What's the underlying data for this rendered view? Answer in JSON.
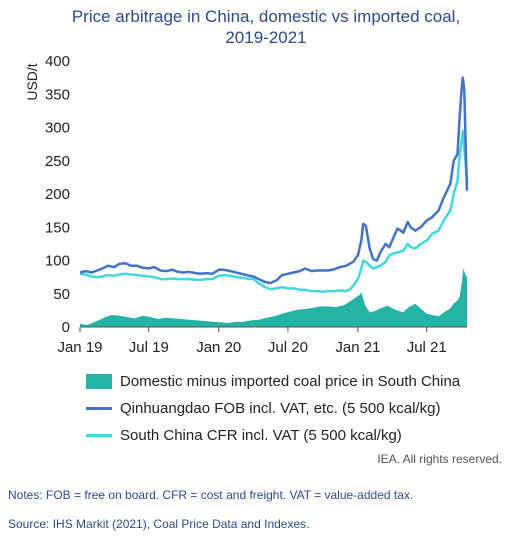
{
  "title_line1": "Price arbitrage in China, domestic vs imported coal,",
  "title_line2": "2019-2021",
  "rights": "IEA. All rights reserved.",
  "notes": "Notes: FOB = free on board. CFR = cost and freight. VAT = value-added tax.",
  "source": "Source: IHS Markit (2021), Coal Price Data and Indexes.",
  "colors": {
    "area": "#25b3a5",
    "qinhuangdao": "#4472c4",
    "south_china": "#3fd9db"
  },
  "chart_data": {
    "type": "line",
    "ylabel": "USD/t",
    "xlabel": "",
    "ylim": [
      0,
      400
    ],
    "yticks": [
      0,
      50,
      100,
      150,
      200,
      250,
      300,
      350,
      400
    ],
    "xlim": [
      "2019-01-01",
      "2021-10-15"
    ],
    "xticks": [
      {
        "date": "2019-01-01",
        "label": "Jan 19"
      },
      {
        "date": "2019-07-01",
        "label": "Jul 19"
      },
      {
        "date": "2020-01-01",
        "label": "Jan 20"
      },
      {
        "date": "2020-07-01",
        "label": "Jul 20"
      },
      {
        "date": "2021-01-01",
        "label": "Jan 21"
      },
      {
        "date": "2021-07-01",
        "label": "Jul 21"
      }
    ],
    "grid": false,
    "legend": "bottom",
    "series": [
      {
        "name": "Domestic minus imported coal price in South China",
        "kind": "area",
        "x": [
          "2019-01-01",
          "2019-01-20",
          "2019-02-10",
          "2019-03-05",
          "2019-03-25",
          "2019-04-15",
          "2019-05-05",
          "2019-05-25",
          "2019-06-15",
          "2019-07-05",
          "2019-07-25",
          "2019-08-15",
          "2019-09-05",
          "2019-09-25",
          "2019-10-15",
          "2019-11-05",
          "2019-11-25",
          "2019-12-15",
          "2020-01-05",
          "2020-01-25",
          "2020-02-15",
          "2020-03-05",
          "2020-03-25",
          "2020-04-15",
          "2020-05-05",
          "2020-05-25",
          "2020-06-15",
          "2020-07-05",
          "2020-07-25",
          "2020-08-15",
          "2020-09-05",
          "2020-09-25",
          "2020-10-15",
          "2020-11-05",
          "2020-11-25",
          "2020-12-05",
          "2020-12-15",
          "2020-12-25",
          "2021-01-05",
          "2021-01-10",
          "2021-01-20",
          "2021-02-01",
          "2021-02-15",
          "2021-03-01",
          "2021-03-20",
          "2021-04-10",
          "2021-04-30",
          "2021-05-15",
          "2021-06-01",
          "2021-06-15",
          "2021-07-01",
          "2021-07-15",
          "2021-08-01",
          "2021-08-15",
          "2021-09-01",
          "2021-09-10",
          "2021-09-20",
          "2021-09-25",
          "2021-10-01",
          "2021-10-05",
          "2021-10-10",
          "2021-10-15"
        ],
        "values": [
          5,
          3,
          8,
          14,
          18,
          17,
          15,
          13,
          17,
          15,
          12,
          14,
          13,
          12,
          11,
          10,
          9,
          8,
          7,
          6,
          8,
          8,
          10,
          11,
          14,
          16,
          20,
          23,
          26,
          27,
          29,
          31,
          31,
          30,
          33,
          36,
          40,
          44,
          48,
          52,
          33,
          22,
          24,
          28,
          32,
          26,
          22,
          30,
          35,
          28,
          20,
          18,
          16,
          22,
          28,
          35,
          40,
          45,
          65,
          88,
          80,
          75
        ]
      },
      {
        "name": "Qinhuangdao FOB incl. VAT, etc. (5 500 kcal/kg)",
        "kind": "line",
        "x": [
          "2019-01-01",
          "2019-01-15",
          "2019-02-01",
          "2019-02-15",
          "2019-03-01",
          "2019-03-15",
          "2019-04-01",
          "2019-04-15",
          "2019-05-01",
          "2019-05-15",
          "2019-06-01",
          "2019-06-15",
          "2019-07-01",
          "2019-07-15",
          "2019-08-01",
          "2019-08-15",
          "2019-09-01",
          "2019-09-15",
          "2019-10-01",
          "2019-10-15",
          "2019-11-01",
          "2019-11-15",
          "2019-12-01",
          "2019-12-15",
          "2020-01-01",
          "2020-01-15",
          "2020-02-01",
          "2020-02-15",
          "2020-03-01",
          "2020-03-15",
          "2020-04-01",
          "2020-04-15",
          "2020-05-01",
          "2020-05-15",
          "2020-06-01",
          "2020-06-15",
          "2020-07-01",
          "2020-07-15",
          "2020-08-01",
          "2020-08-15",
          "2020-09-01",
          "2020-09-15",
          "2020-10-01",
          "2020-10-15",
          "2020-11-01",
          "2020-11-15",
          "2020-12-01",
          "2020-12-10",
          "2020-12-20",
          "2021-01-01",
          "2021-01-10",
          "2021-01-15",
          "2021-01-22",
          "2021-02-01",
          "2021-02-10",
          "2021-02-20",
          "2021-03-01",
          "2021-03-15",
          "2021-03-25",
          "2021-04-01",
          "2021-04-15",
          "2021-05-01",
          "2021-05-12",
          "2021-05-20",
          "2021-06-01",
          "2021-06-15",
          "2021-07-01",
          "2021-07-15",
          "2021-08-01",
          "2021-08-15",
          "2021-09-01",
          "2021-09-10",
          "2021-09-20",
          "2021-09-25",
          "2021-10-01",
          "2021-10-04",
          "2021-10-08",
          "2021-10-12",
          "2021-10-15"
        ],
        "values": [
          82,
          84,
          82,
          85,
          88,
          92,
          90,
          95,
          96,
          92,
          92,
          89,
          88,
          90,
          85,
          84,
          86,
          83,
          82,
          83,
          81,
          80,
          81,
          80,
          86,
          86,
          84,
          82,
          80,
          78,
          76,
          72,
          68,
          66,
          70,
          78,
          80,
          82,
          84,
          88,
          84,
          85,
          85,
          85,
          87,
          90,
          92,
          95,
          98,
          108,
          130,
          155,
          152,
          118,
          102,
          100,
          112,
          125,
          120,
          130,
          148,
          142,
          158,
          150,
          145,
          150,
          160,
          165,
          175,
          195,
          215,
          250,
          260,
          310,
          360,
          375,
          355,
          260,
          205
        ]
      },
      {
        "name": "South China CFR incl. VAT (5 500 kcal/kg)",
        "kind": "line",
        "x": [
          "2019-01-01",
          "2019-01-15",
          "2019-02-01",
          "2019-02-15",
          "2019-03-01",
          "2019-03-15",
          "2019-04-01",
          "2019-04-15",
          "2019-05-01",
          "2019-05-15",
          "2019-06-01",
          "2019-06-15",
          "2019-07-01",
          "2019-07-15",
          "2019-08-01",
          "2019-08-15",
          "2019-09-01",
          "2019-09-15",
          "2019-10-01",
          "2019-10-15",
          "2019-11-01",
          "2019-11-15",
          "2019-12-01",
          "2019-12-15",
          "2020-01-01",
          "2020-01-15",
          "2020-02-01",
          "2020-02-15",
          "2020-03-01",
          "2020-03-15",
          "2020-04-01",
          "2020-04-15",
          "2020-05-01",
          "2020-05-15",
          "2020-06-01",
          "2020-06-15",
          "2020-07-01",
          "2020-07-15",
          "2020-08-01",
          "2020-08-15",
          "2020-09-01",
          "2020-09-15",
          "2020-10-01",
          "2020-10-15",
          "2020-11-01",
          "2020-11-15",
          "2020-12-01",
          "2020-12-10",
          "2020-12-20",
          "2021-01-01",
          "2021-01-10",
          "2021-01-15",
          "2021-01-22",
          "2021-02-01",
          "2021-02-10",
          "2021-02-20",
          "2021-03-01",
          "2021-03-15",
          "2021-03-25",
          "2021-04-01",
          "2021-04-15",
          "2021-05-01",
          "2021-05-12",
          "2021-05-20",
          "2021-06-01",
          "2021-06-15",
          "2021-07-01",
          "2021-07-15",
          "2021-08-01",
          "2021-08-15",
          "2021-09-01",
          "2021-09-10",
          "2021-09-20",
          "2021-09-25",
          "2021-10-01",
          "2021-10-04",
          "2021-10-08",
          "2021-10-12",
          "2021-10-15"
        ],
        "values": [
          80,
          79,
          76,
          75,
          76,
          78,
          77,
          79,
          80,
          79,
          78,
          77,
          76,
          75,
          72,
          72,
          73,
          72,
          72,
          72,
          71,
          71,
          72,
          72,
          77,
          78,
          77,
          75,
          74,
          73,
          72,
          66,
          60,
          57,
          58,
          60,
          58,
          58,
          56,
          56,
          54,
          54,
          53,
          54,
          54,
          55,
          54,
          56,
          62,
          72,
          88,
          100,
          98,
          92,
          88,
          90,
          92,
          98,
          108,
          110,
          112,
          115,
          125,
          120,
          118,
          125,
          130,
          140,
          145,
          160,
          175,
          200,
          220,
          255,
          280,
          295,
          270,
          240,
          215
        ]
      }
    ]
  }
}
